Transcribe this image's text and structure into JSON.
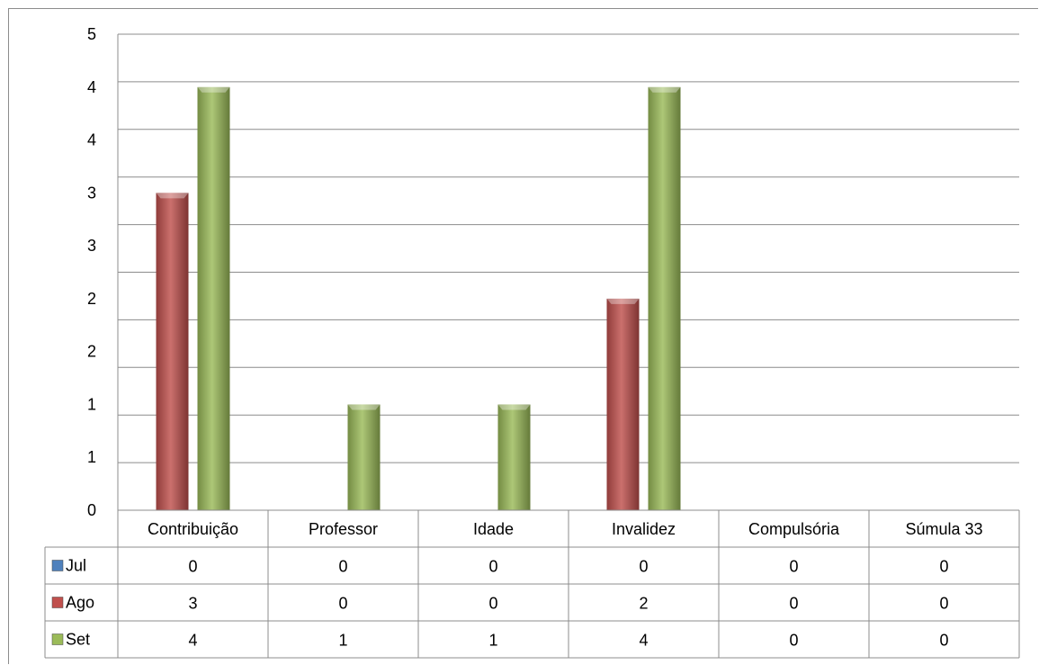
{
  "chart_data": {
    "type": "bar",
    "categories": [
      "Contribuição",
      "Professor",
      "Idade",
      "Invalidez",
      "Compulsória",
      "Súmula 33"
    ],
    "series": [
      {
        "name": "Jul",
        "values": [
          0,
          0,
          0,
          0,
          0,
          0
        ],
        "color": "#4f81bd"
      },
      {
        "name": "Ago",
        "values": [
          3,
          0,
          0,
          2,
          0,
          0
        ],
        "color": "#c0504d"
      },
      {
        "name": "Set",
        "values": [
          4,
          1,
          1,
          4,
          0,
          0
        ],
        "color": "#9bbb59"
      }
    ],
    "y_tick_labels": [
      "0",
      "1",
      "1",
      "2",
      "2",
      "3",
      "3",
      "4",
      "4",
      "5"
    ],
    "ylim": [
      0,
      4.5
    ],
    "grid": true,
    "legend": "data-table",
    "data_table": true
  }
}
